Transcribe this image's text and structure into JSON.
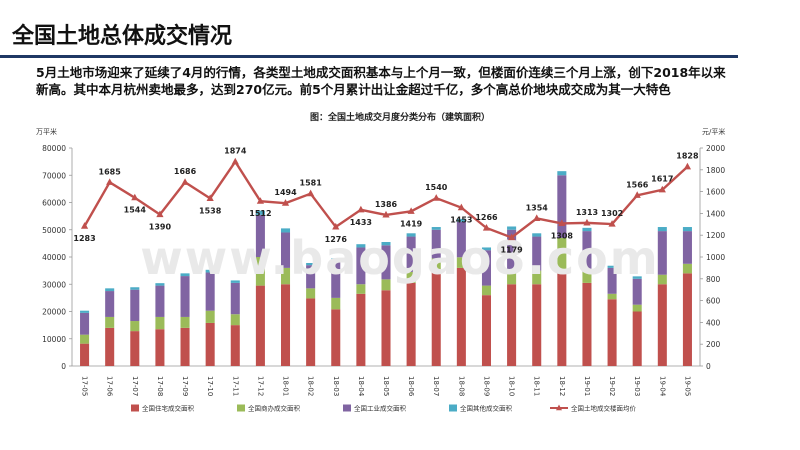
{
  "page": {
    "title": "全国土地总体成交情况",
    "summary": "5月土地市场迎来了延续了4月的行情，各类型土地成交面积基本与上个月一致，但楼面价连续三个月上涨，创下2018年以来新高。其中本月杭州卖地最多，达到270亿元。前5个月累计出让金超过千亿，多个高总价地块成交成为其一大特色",
    "watermark": "www.baogao8.com"
  },
  "chart_data": {
    "type": "bar+line",
    "title": "图：全国土地成交月度分类分布（建筑面积）",
    "left_axis_unit": "万平米",
    "right_axis_unit": "元/平米",
    "ylim": [
      0,
      80000
    ],
    "y2lim": [
      0,
      2000
    ],
    "y_ticks": [
      "0",
      "10000",
      "20000",
      "30000",
      "40000",
      "50000",
      "60000",
      "70000",
      "80000"
    ],
    "y2_ticks": [
      "0",
      "200",
      "400",
      "600",
      "800",
      "1000",
      "1200",
      "1400",
      "1600",
      "1800",
      "2000"
    ],
    "categories": [
      "17-05",
      "17-06",
      "17-07",
      "17-08",
      "17-09",
      "17-10",
      "17-11",
      "17-12",
      "18-01",
      "18-02",
      "18-03",
      "18-04",
      "18-05",
      "18-06",
      "18-07",
      "18-08",
      "18-09",
      "18-10",
      "18-11",
      "18-12",
      "19-01",
      "19-02",
      "19-03",
      "19-04",
      "19-05"
    ],
    "series": [
      {
        "name": "全国住宅成交面积",
        "color": "#c0504d",
        "values": [
          8200,
          14000,
          12800,
          13500,
          14000,
          15800,
          15000,
          29500,
          30000,
          24800,
          20800,
          26500,
          27800,
          30500,
          35500,
          36000,
          26000,
          30000,
          30000,
          35000,
          30500,
          24500,
          20000,
          30000,
          34000
        ]
      },
      {
        "name": "全国商办成交面积",
        "color": "#9bbb59",
        "values": [
          3300,
          4000,
          3700,
          4500,
          4000,
          4500,
          4000,
          10500,
          6000,
          3700,
          4200,
          3500,
          4000,
          4000,
          4000,
          3900,
          3500,
          4000,
          5000,
          12000,
          4000,
          2000,
          2500,
          3500,
          3500
        ]
      },
      {
        "name": "全国工业成交面积",
        "color": "#8064a2",
        "values": [
          8000,
          9500,
          11500,
          11500,
          15000,
          14000,
          11500,
          15500,
          13000,
          8500,
          13500,
          13500,
          12500,
          13000,
          10500,
          13000,
          13000,
          16000,
          12500,
          23000,
          15000,
          9500,
          9500,
          16000,
          12000
        ]
      },
      {
        "name": "全国其他成交面积",
        "color": "#4bacc6",
        "values": [
          800,
          1000,
          900,
          900,
          1000,
          1000,
          900,
          1500,
          1500,
          800,
          1000,
          1200,
          1200,
          1200,
          1000,
          1100,
          1000,
          1200,
          1200,
          1500,
          1200,
          800,
          900,
          1500,
          1500
        ]
      }
    ],
    "line": {
      "name": "全国土地成交楼面均价",
      "color": "#c0504d",
      "values": [
        1283,
        1685,
        1544,
        1390,
        1686,
        1538,
        1874,
        1512,
        1494,
        1581,
        1276,
        1433,
        1386,
        1419,
        1540,
        1453,
        1266,
        1179,
        1354,
        1308,
        1313,
        1302,
        1566,
        1617,
        1828
      ],
      "label_pos": [
        "below",
        "above",
        "below",
        "below",
        "above",
        "below",
        "above",
        "below",
        "above",
        "above",
        "below",
        "below",
        "above",
        "below",
        "above",
        "below",
        "above",
        "below",
        "above",
        "below",
        "above",
        "above",
        "above",
        "above",
        "above"
      ]
    }
  }
}
